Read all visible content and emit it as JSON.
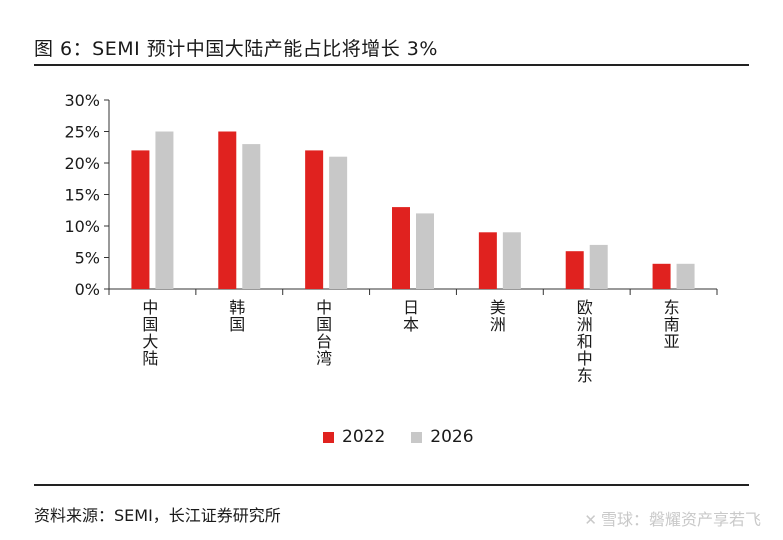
{
  "figure": {
    "title": "图 6：SEMI 预计中国大陆产能占比将增长 3%",
    "source": "资料来源：SEMI，长江证券研究所",
    "watermark": "雪球：磐耀资产享若飞"
  },
  "colors": {
    "2022": "#e0221f",
    "2026": "#c8c8c8"
  },
  "chart_data": {
    "type": "bar",
    "title": "",
    "xlabel": "",
    "ylabel": "",
    "categories": [
      "中国大陆",
      "韩国",
      "中国台湾",
      "日本",
      "美洲",
      "欧洲和中东",
      "东南亚"
    ],
    "series": [
      {
        "name": "2022",
        "values": [
          22,
          25,
          22,
          13,
          9,
          6,
          4
        ]
      },
      {
        "name": "2026",
        "values": [
          25,
          23,
          21,
          12,
          9,
          7,
          4
        ]
      }
    ],
    "yticks": [
      "0%",
      "5%",
      "10%",
      "15%",
      "20%",
      "25%",
      "30%"
    ],
    "ylim": [
      0,
      30
    ],
    "y_unit": "%",
    "grid": false,
    "legend": "bottom"
  }
}
